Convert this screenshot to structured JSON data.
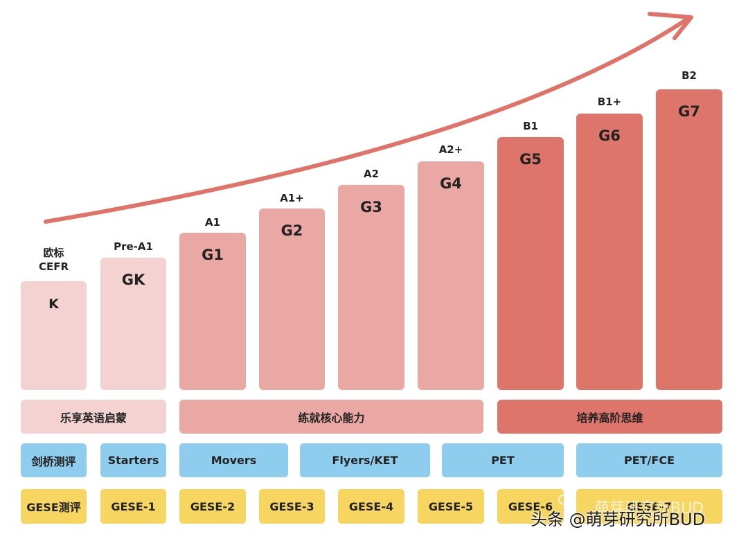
{
  "colors": {
    "stage_light": "#f4d2d2",
    "stage_mid": "#eaa8a4",
    "stage_dark": "#de756b",
    "arrow": "#e07268",
    "exam_blue": "#8fcdee",
    "gese_yellow": "#f6d560"
  },
  "cefr_header_line1": "欧标",
  "cefr_header_line2": "CEFR",
  "levels": [
    {
      "grade": "K"
    },
    {
      "grade": "GK",
      "cefr": "Pre-A1"
    },
    {
      "grade": "G1",
      "cefr": "A1"
    },
    {
      "grade": "G2",
      "cefr": "A1+"
    },
    {
      "grade": "G3",
      "cefr": "A2"
    },
    {
      "grade": "G4",
      "cefr": "A2+"
    },
    {
      "grade": "G5",
      "cefr": "B1"
    },
    {
      "grade": "G6",
      "cefr": "B1+"
    },
    {
      "grade": "G7",
      "cefr": "B2"
    }
  ],
  "stages": [
    "乐享英语启蒙",
    "练就核心能力",
    "培养高阶思维"
  ],
  "cambridge": [
    "剑桥测评",
    "Starters",
    "Movers",
    "Flyers/KET",
    "PET",
    "PET/FCE"
  ],
  "gese": [
    "GESE测评",
    "GESE-1",
    "GESE-2",
    "GESE-3",
    "GESE-4",
    "GESE-5",
    "GESE-6",
    "GESE-7"
  ],
  "watermark": "头条 @萌芽研究所BUD",
  "watermark_faded": "萌芽研究所BUD",
  "icons": {
    "arrow": "curved-growth-arrow-icon",
    "wechat": "wechat-icon"
  }
}
